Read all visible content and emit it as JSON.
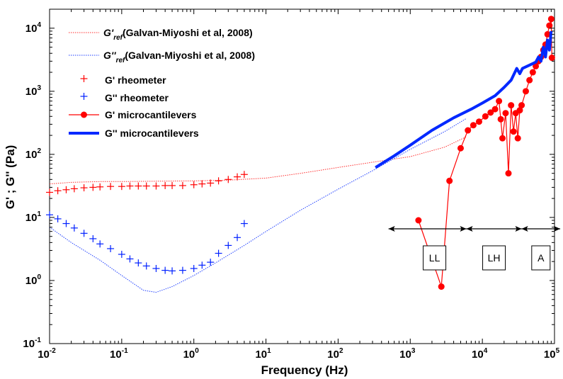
{
  "chart_data": {
    "type": "scatter",
    "xlabel": "Frequency (Hz)",
    "ylabel": "G' ; G'' (Pa)",
    "xscale": "log",
    "yscale": "log",
    "xlim": [
      0.01,
      100000
    ],
    "ylim": [
      0.1,
      20000
    ],
    "x_ticks": [
      {
        "base": "10",
        "exp": "-2"
      },
      {
        "base": "10",
        "exp": "-1"
      },
      {
        "base": "10",
        "exp": "0"
      },
      {
        "base": "10",
        "exp": "1"
      },
      {
        "base": "10",
        "exp": "2"
      },
      {
        "base": "10",
        "exp": "3"
      },
      {
        "base": "10",
        "exp": "4"
      },
      {
        "base": "10",
        "exp": "5"
      }
    ],
    "y_ticks": [
      {
        "base": "10",
        "exp": "-1"
      },
      {
        "base": "10",
        "exp": "0"
      },
      {
        "base": "10",
        "exp": "1"
      },
      {
        "base": "10",
        "exp": "2"
      },
      {
        "base": "10",
        "exp": "3"
      },
      {
        "base": "10",
        "exp": "4"
      }
    ],
    "legend_position": "top-left",
    "grid": false,
    "legend": [
      {
        "main": "G'",
        "sub": "ref",
        "suffix": "(Galvan-Miyoshi et al, 2008)",
        "color": "#ff3030",
        "style": "dotted"
      },
      {
        "main": "G''",
        "sub": "ref",
        "suffix": "(Galvan-Miyoshi et al, 2008)",
        "color": "#2040ff",
        "style": "dotted"
      },
      {
        "main": "G' rheometer",
        "sub": "",
        "suffix": "",
        "color": "#ff0000",
        "style": "plus"
      },
      {
        "main": "G'' rheometer",
        "sub": "",
        "suffix": "",
        "color": "#0020ff",
        "style": "plus"
      },
      {
        "main": "G' microcantilevers",
        "sub": "",
        "suffix": "",
        "color": "#ff0000",
        "style": "line-dot"
      },
      {
        "main": "G'' microcantilevers",
        "sub": "",
        "suffix": "",
        "color": "#0028ff",
        "style": "thick"
      }
    ],
    "series": [
      {
        "name": "G' ref (Galvan-Miyoshi et al, 2008)",
        "color": "#ff3030",
        "style": "dotted",
        "points": [
          [
            0.01,
            34
          ],
          [
            0.02,
            36
          ],
          [
            0.05,
            37
          ],
          [
            0.1,
            37
          ],
          [
            0.3,
            37.5
          ],
          [
            1,
            38
          ],
          [
            3,
            39
          ],
          [
            10,
            42
          ],
          [
            30,
            50
          ],
          [
            100,
            62
          ],
          [
            300,
            75
          ],
          [
            1000,
            92
          ],
          [
            3000,
            130
          ],
          [
            6000,
            190
          ]
        ]
      },
      {
        "name": "G'' ref (Galvan-Miyoshi et al, 2008)",
        "color": "#2040ff",
        "style": "dotted",
        "points": [
          [
            0.01,
            7
          ],
          [
            0.02,
            4
          ],
          [
            0.05,
            2.1
          ],
          [
            0.1,
            1.2
          ],
          [
            0.2,
            0.7
          ],
          [
            0.3,
            0.65
          ],
          [
            0.5,
            0.8
          ],
          [
            1,
            1.2
          ],
          [
            2,
            1.9
          ],
          [
            5,
            3.6
          ],
          [
            10,
            6
          ],
          [
            30,
            13
          ],
          [
            100,
            28
          ],
          [
            300,
            55
          ],
          [
            1000,
            120
          ],
          [
            3000,
            230
          ],
          [
            6000,
            370
          ]
        ]
      },
      {
        "name": "G' rheometer",
        "color": "#ff0000",
        "style": "plus",
        "points": [
          [
            0.01,
            25
          ],
          [
            0.013,
            26.5
          ],
          [
            0.017,
            27.5
          ],
          [
            0.022,
            28.5
          ],
          [
            0.03,
            29.5
          ],
          [
            0.04,
            30
          ],
          [
            0.05,
            30.5
          ],
          [
            0.07,
            31
          ],
          [
            0.1,
            31
          ],
          [
            0.13,
            31.5
          ],
          [
            0.17,
            31.5
          ],
          [
            0.22,
            31.5
          ],
          [
            0.3,
            31.5
          ],
          [
            0.4,
            32
          ],
          [
            0.5,
            32
          ],
          [
            0.7,
            32
          ],
          [
            1,
            33
          ],
          [
            1.3,
            34
          ],
          [
            1.7,
            35
          ],
          [
            2.2,
            38
          ],
          [
            3,
            40
          ],
          [
            4,
            44
          ],
          [
            5,
            48
          ]
        ]
      },
      {
        "name": "G'' rheometer",
        "color": "#0020ff",
        "style": "plus",
        "points": [
          [
            0.01,
            11
          ],
          [
            0.013,
            9.5
          ],
          [
            0.017,
            8
          ],
          [
            0.022,
            6.8
          ],
          [
            0.03,
            5.6
          ],
          [
            0.04,
            4.6
          ],
          [
            0.05,
            3.8
          ],
          [
            0.07,
            3.2
          ],
          [
            0.1,
            2.6
          ],
          [
            0.13,
            2.2
          ],
          [
            0.17,
            1.9
          ],
          [
            0.22,
            1.7
          ],
          [
            0.3,
            1.55
          ],
          [
            0.4,
            1.45
          ],
          [
            0.5,
            1.42
          ],
          [
            0.7,
            1.45
          ],
          [
            1,
            1.55
          ],
          [
            1.3,
            1.75
          ],
          [
            1.7,
            1.95
          ],
          [
            2.2,
            2.7
          ],
          [
            3,
            3.6
          ],
          [
            4,
            4.8
          ],
          [
            5,
            8
          ]
        ]
      },
      {
        "name": "G' microcantilevers",
        "color": "#ff0000",
        "style": "line-dot",
        "points": [
          [
            1300,
            9
          ],
          [
            2700,
            0.8
          ],
          [
            3500,
            38
          ],
          [
            5000,
            125
          ],
          [
            6300,
            240
          ],
          [
            7500,
            290
          ],
          [
            9000,
            330
          ],
          [
            11000,
            400
          ],
          [
            13000,
            460
          ],
          [
            15000,
            520
          ],
          [
            17000,
            700
          ],
          [
            18000,
            360
          ],
          [
            19000,
            180
          ],
          [
            21000,
            450
          ],
          [
            23000,
            50
          ],
          [
            25000,
            600
          ],
          [
            27000,
            230
          ],
          [
            29000,
            450
          ],
          [
            31000,
            180
          ],
          [
            33000,
            500
          ],
          [
            35000,
            600
          ],
          [
            40000,
            1000
          ],
          [
            45000,
            1500
          ],
          [
            50000,
            2000
          ],
          [
            55000,
            2500
          ],
          [
            60000,
            3000
          ],
          [
            65000,
            3500
          ],
          [
            70000,
            4500
          ],
          [
            75000,
            5500
          ],
          [
            80000,
            8000
          ],
          [
            85000,
            11000
          ],
          [
            90000,
            14000
          ],
          [
            92000,
            3400
          ]
        ]
      },
      {
        "name": "G'' microcantilevers",
        "color": "#0028ff",
        "style": "thick",
        "points": [
          [
            330,
            62
          ],
          [
            600,
            95
          ],
          [
            1000,
            140
          ],
          [
            2000,
            240
          ],
          [
            4000,
            380
          ],
          [
            7000,
            520
          ],
          [
            10000,
            650
          ],
          [
            15000,
            850
          ],
          [
            20000,
            1150
          ],
          [
            25000,
            1500
          ],
          [
            30000,
            2300
          ],
          [
            33000,
            1900
          ],
          [
            36000,
            2300
          ],
          [
            45000,
            2600
          ],
          [
            55000,
            2900
          ],
          [
            60000,
            3500
          ],
          [
            65000,
            3000
          ],
          [
            70000,
            5000
          ],
          [
            75000,
            3500
          ],
          [
            80000,
            6500
          ],
          [
            85000,
            4500
          ],
          [
            90000,
            9000
          ]
        ]
      }
    ],
    "annotations": {
      "regions": [
        {
          "label": "LL",
          "x_from": 500,
          "x_to": 6000
        },
        {
          "label": "LH",
          "x_from": 6000,
          "x_to": 35000
        },
        {
          "label": "A",
          "x_from": 35000,
          "x_to": 120000
        }
      ]
    }
  }
}
